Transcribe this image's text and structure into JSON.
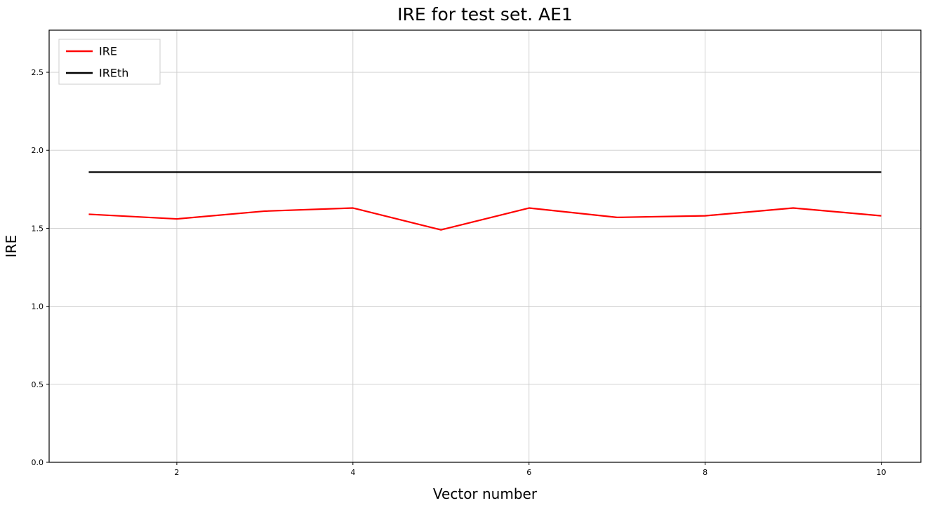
{
  "page": {
    "background_color": "#ffffff"
  },
  "chart": {
    "title": "IRE for test set. AE1",
    "xlabel": "Vector number",
    "ylabel": "IRE"
  },
  "chart_data": {
    "type": "line",
    "title": "IRE for test set. AE1",
    "xlabel": "Vector number",
    "ylabel": "IRE",
    "xlim": [
      0.55,
      10.45
    ],
    "ylim": [
      0,
      2.77
    ],
    "xticks": [
      2,
      4,
      6,
      8,
      10
    ],
    "yticks": [
      0.0,
      0.5,
      1.0,
      1.5,
      2.0,
      2.5
    ],
    "grid": true,
    "grid_color": "#cccccc",
    "border_color": "#000000",
    "legend_position": "upper left",
    "x": [
      1,
      2,
      3,
      4,
      5,
      6,
      7,
      8,
      9,
      10
    ],
    "series": [
      {
        "name": "IRE",
        "color": "#ff0000",
        "values": [
          1.59,
          1.56,
          1.61,
          1.63,
          1.49,
          1.63,
          1.57,
          1.58,
          1.63,
          1.58
        ]
      },
      {
        "name": "IREth",
        "color": "#000000",
        "values": [
          1.86,
          1.86,
          1.86,
          1.86,
          1.86,
          1.86,
          1.86,
          1.86,
          1.86,
          1.86
        ]
      }
    ]
  }
}
